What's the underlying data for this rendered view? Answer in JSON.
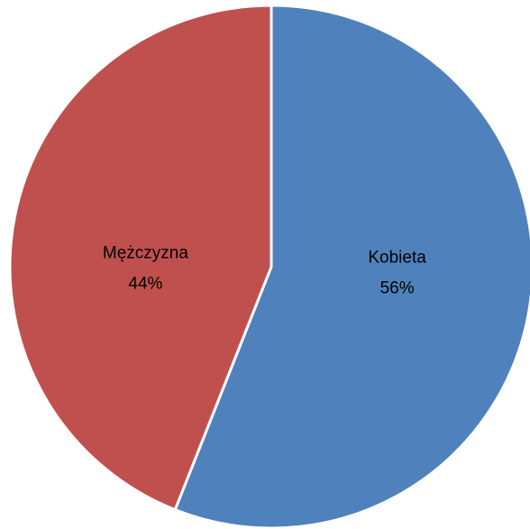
{
  "chart_data": {
    "type": "pie",
    "categories": [
      "Kobieta",
      "Mężczyzna"
    ],
    "values": [
      56,
      44
    ],
    "value_labels": [
      "56%",
      "44%"
    ],
    "colors": [
      "#4f81bd",
      "#c0504d"
    ]
  }
}
